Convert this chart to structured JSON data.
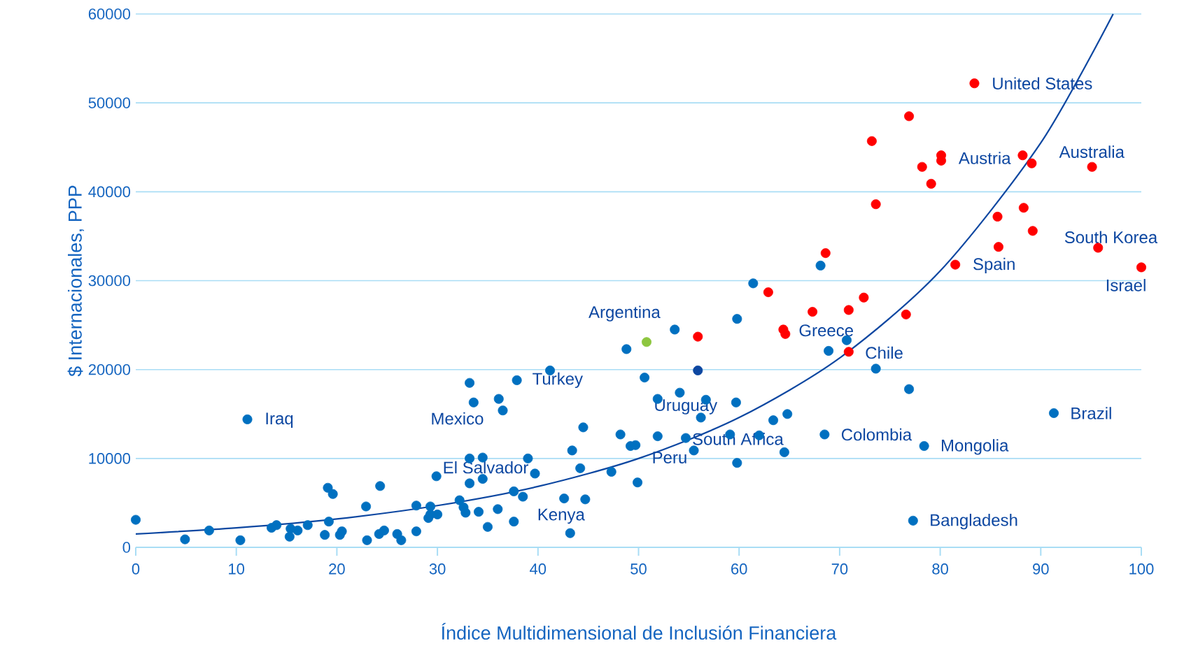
{
  "chart_data": {
    "type": "scatter",
    "xlabel": "Índice Multidimensional de Inclusión  Financiera",
    "ylabel": "$ Internacionales, PPP",
    "xlim": [
      0,
      100
    ],
    "ylim": [
      0,
      60000
    ],
    "xticks": [
      0,
      10,
      20,
      30,
      40,
      50,
      60,
      70,
      80,
      90,
      100
    ],
    "yticks": [
      0,
      10000,
      20000,
      30000,
      40000,
      50000,
      60000
    ],
    "grid": "y",
    "marker": "circle",
    "series": [
      {
        "color": "#0070c0",
        "x": [
          0,
          4.9,
          7.3,
          10.4,
          11.1,
          13.5,
          14.0,
          15.4,
          15.3,
          16.1,
          17.1,
          18.8,
          19.1,
          19.6,
          19.2,
          20.3,
          20.5,
          22.9,
          23.0,
          24.3,
          24.2,
          24.7,
          26.0,
          26.4,
          27.9,
          27.9,
          29.3,
          29.1,
          29.3,
          30.0,
          29.9,
          32.2,
          32.6,
          32.8,
          33.2,
          33.2,
          33.2,
          33.6,
          34.1,
          34.5,
          34.5,
          35.0,
          36.0,
          36.1,
          36.5,
          37.6,
          37.6,
          37.9,
          38.5,
          39.0,
          39.7,
          41.2,
          42.6,
          43.2,
          43.4,
          44.2,
          44.5,
          44.7,
          47.3,
          48.2,
          48.8,
          49.2,
          49.7,
          49.9,
          50.6,
          51.9,
          51.9,
          53.6,
          54.1,
          54.7,
          55.5,
          56.2,
          56.7,
          59.1,
          59.7,
          59.8,
          59.8,
          61.4,
          62.0,
          63.4,
          64.5,
          64.8,
          68.1,
          68.5,
          68.9,
          70.7,
          73.6,
          76.9,
          77.3,
          78.4,
          91.3
        ],
        "values": [
          3100,
          900,
          1900,
          800,
          14400,
          2200,
          2500,
          2100,
          1200,
          1900,
          2500,
          1400,
          6700,
          6000,
          2900,
          1400,
          1800,
          4600,
          800,
          6900,
          1500,
          1900,
          1500,
          800,
          4700,
          1800,
          4600,
          3300,
          3700,
          3700,
          8000,
          5300,
          4500,
          3900,
          7200,
          18500,
          10000,
          16300,
          4000,
          7700,
          10100,
          2300,
          4300,
          16700,
          15400,
          6300,
          2900,
          18800,
          5700,
          10000,
          8300,
          19900,
          5500,
          1600,
          10900,
          8900,
          13500,
          5400,
          8500,
          12700,
          22300,
          11400,
          11500,
          7300,
          19100,
          16700,
          12500,
          24500,
          17400,
          12300,
          10900,
          14600,
          16600,
          12700,
          16300,
          9500,
          25700,
          29700,
          12600,
          14300,
          10700,
          15000,
          31700,
          12700,
          22100,
          23300,
          20100,
          17800,
          3000,
          11400,
          15100
        ]
      },
      {
        "color": "#0d47a1",
        "x": [
          55.9
        ],
        "values": [
          19900
        ]
      },
      {
        "color": "#ff0000",
        "x": [
          55.9,
          62.9,
          64.4,
          64.6,
          67.3,
          68.6,
          70.9,
          70.9,
          72.4,
          73.2,
          73.6,
          76.6,
          76.9,
          78.2,
          79.1,
          80.1,
          80.1,
          81.5,
          83.4,
          85.7,
          85.8,
          88.2,
          88.3,
          89.1,
          89.2,
          95.1,
          95.7,
          100
        ],
        "values": [
          23700,
          28700,
          24500,
          24000,
          26500,
          33100,
          26700,
          22000,
          28100,
          45700,
          38600,
          26200,
          48500,
          42800,
          40900,
          44100,
          43500,
          31800,
          52200,
          37200,
          33800,
          44100,
          38200,
          43200,
          35600,
          42800,
          33700,
          31500
        ]
      },
      {
        "color": "#8dc63f",
        "x": [
          50.8
        ],
        "values": [
          23100
        ]
      },
      {
        "type": "line",
        "marker": "none",
        "color": "#0d47a1",
        "x": [
          0,
          10,
          20,
          30,
          40,
          50,
          60,
          70,
          80,
          90,
          97.2
        ],
        "values": [
          1500,
          2200,
          3200,
          4700,
          6850,
          10000,
          14600,
          21300,
          31100,
          45500,
          60000
        ]
      }
    ],
    "annotations": [
      "Iraq",
      "Mexico",
      "Turkey",
      "El Salvador",
      "Kenya",
      "Argentina",
      "Uruguay",
      "South Africa",
      "Peru",
      "Greece",
      "Chile",
      "Colombia",
      "Mongolia",
      "Bangladesh",
      "Brazil",
      "United States",
      "Austria",
      "Australia",
      "South Korea",
      "Spain",
      "Israel"
    ]
  }
}
